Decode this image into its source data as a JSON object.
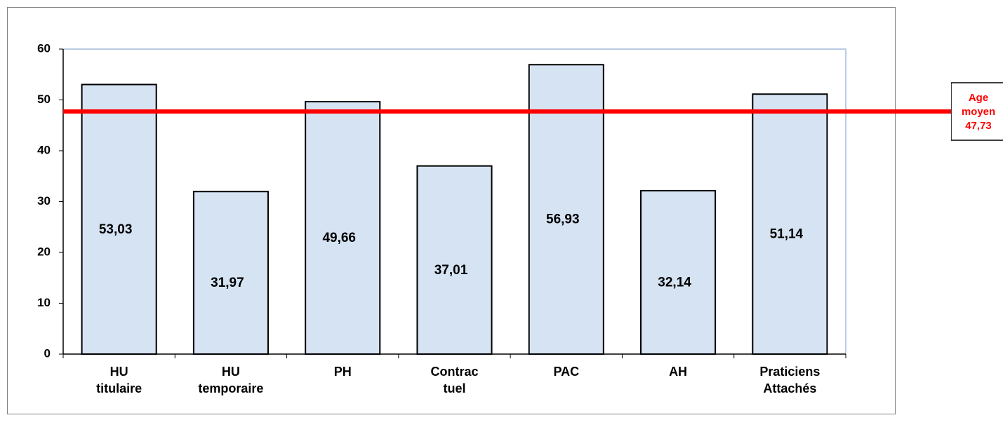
{
  "chart_data": {
    "type": "bar",
    "categories": [
      [
        "HU",
        "titulaire"
      ],
      [
        "HU",
        "temporaire"
      ],
      [
        "PH"
      ],
      [
        "Contrac",
        "tuel"
      ],
      [
        "PAC"
      ],
      [
        "AH"
      ],
      [
        "Praticiens",
        "Attachés"
      ]
    ],
    "values": [
      53.03,
      31.97,
      49.66,
      37.01,
      56.93,
      32.14,
      51.14
    ],
    "value_labels": [
      "53,03",
      "31,97",
      "49,66",
      "37,01",
      "56,93",
      "32,14",
      "51,14"
    ],
    "color": "#d6e3f3",
    "ylim": [
      0,
      60
    ],
    "yticks": [
      0,
      10,
      20,
      30,
      40,
      50,
      60
    ],
    "reference_line": {
      "label": [
        "Age",
        "moyen"
      ],
      "value": 47.73,
      "value_label": "47,73",
      "color": "#ff0000"
    }
  }
}
